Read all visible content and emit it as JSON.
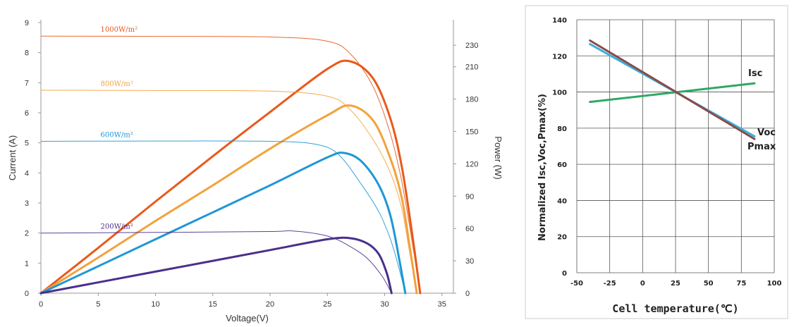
{
  "chart_data": [
    {
      "type": "line",
      "xlabel": "Voltage(V)",
      "ylabel": "Current (A)",
      "y2label": "Power (W)",
      "xlim": [
        0,
        36
      ],
      "ylim": [
        0,
        9
      ],
      "y2lim": [
        0,
        251
      ],
      "xticks": [
        0,
        5,
        10,
        15,
        20,
        25,
        30,
        35
      ],
      "yticks": [
        0,
        1,
        2,
        3,
        4,
        5,
        6,
        7,
        8,
        9
      ],
      "y2ticks": [
        0,
        30,
        60,
        90,
        120,
        150,
        180,
        210,
        230
      ],
      "grid": false,
      "series": [
        {
          "name": "1000W/m²",
          "color": "#e8591c",
          "voc": 33.1,
          "isc": 8.55,
          "current": [
            [
              0,
              8.55
            ],
            [
              10,
              8.54
            ],
            [
              20,
              8.52
            ],
            [
              25,
              8.38
            ],
            [
              27,
              7.96
            ],
            [
              29,
              6.86
            ],
            [
              30.5,
              5.3
            ],
            [
              31.5,
              3.7
            ],
            [
              32.4,
              1.7
            ],
            [
              33.1,
              0
            ]
          ],
          "power": [
            [
              0,
              0
            ],
            [
              5,
              42
            ],
            [
              10,
              85
            ],
            [
              15,
              127
            ],
            [
              20,
              168
            ],
            [
              25,
              208
            ],
            [
              27,
              215
            ],
            [
              29,
              199
            ],
            [
              30.5,
              162
            ],
            [
              31.5,
              117
            ],
            [
              32.4,
              55
            ],
            [
              33.1,
              0
            ]
          ]
        },
        {
          "name": "800W/m²",
          "color": "#f2a23c",
          "voc": 32.8,
          "isc": 6.75,
          "current": [
            [
              0,
              6.75
            ],
            [
              10,
              6.74
            ],
            [
              20,
              6.72
            ],
            [
              25,
              6.55
            ],
            [
              27,
              6.1
            ],
            [
              29,
              5.1
            ],
            [
              30.5,
              4.0
            ],
            [
              31.5,
              2.8
            ],
            [
              32.2,
              1.3
            ],
            [
              32.8,
              0
            ]
          ],
          "power": [
            [
              0,
              0
            ],
            [
              5,
              33
            ],
            [
              10,
              67
            ],
            [
              15,
              100
            ],
            [
              20,
              134
            ],
            [
              25,
              165
            ],
            [
              27,
              174
            ],
            [
              29,
              160
            ],
            [
              30.5,
              125
            ],
            [
              31.5,
              88
            ],
            [
              32.2,
              42
            ],
            [
              32.8,
              0
            ]
          ]
        },
        {
          "name": "600W/m²",
          "color": "#1f97d4",
          "voc": 31.8,
          "isc": 5.05,
          "current": [
            [
              0,
              5.05
            ],
            [
              10,
              5.06
            ],
            [
              20,
              5.05
            ],
            [
              24,
              4.95
            ],
            [
              26,
              4.6
            ],
            [
              28,
              3.6
            ],
            [
              29.5,
              2.7
            ],
            [
              30.5,
              1.8
            ],
            [
              31.2,
              0.9
            ],
            [
              31.8,
              0
            ]
          ],
          "power": [
            [
              0,
              0
            ],
            [
              5,
              25
            ],
            [
              10,
              50
            ],
            [
              15,
              75
            ],
            [
              20,
              100
            ],
            [
              25,
              126
            ],
            [
              26.5,
              130
            ],
            [
              28,
              122
            ],
            [
              29.5,
              100
            ],
            [
              30.5,
              72
            ],
            [
              31.3,
              30
            ],
            [
              31.8,
              0
            ]
          ]
        },
        {
          "name": "200W/m²",
          "color": "#4a2f8c",
          "voc": 30.6,
          "isc": 2.0,
          "current": [
            [
              0,
              2.0
            ],
            [
              10,
              2.02
            ],
            [
              20,
              2.05
            ],
            [
              22,
              2.07
            ],
            [
              25,
              1.9
            ],
            [
              27,
              1.55
            ],
            [
              28.5,
              1.15
            ],
            [
              29.8,
              0.55
            ],
            [
              30.6,
              0
            ]
          ],
          "power": [
            [
              0,
              0
            ],
            [
              5,
              10
            ],
            [
              10,
              20
            ],
            [
              15,
              30
            ],
            [
              20,
              40
            ],
            [
              25,
              50
            ],
            [
              27,
              51
            ],
            [
              28.5,
              46
            ],
            [
              29.5,
              36
            ],
            [
              30.2,
              18
            ],
            [
              30.6,
              0
            ]
          ]
        }
      ]
    },
    {
      "type": "line",
      "xlabel": "Cell temperature(℃)",
      "ylabel": "Normalized Isc,Voc,Pmax(%)",
      "xlim": [
        -50,
        100
      ],
      "ylim": [
        0,
        140
      ],
      "xticks": [
        -50,
        -25,
        0,
        25,
        50,
        75,
        100
      ],
      "yticks": [
        0,
        20,
        40,
        60,
        80,
        100,
        120,
        140
      ],
      "grid": true,
      "series": [
        {
          "name": "Isc",
          "color": "#2fa866",
          "x": [
            -40,
            85
          ],
          "values": [
            94.5,
            104.8
          ]
        },
        {
          "name": "Voc",
          "color": "#3ab0d8",
          "x": [
            -40,
            85
          ],
          "values": [
            126.5,
            75.5
          ]
        },
        {
          "name": "Pmax",
          "color": "#8a4a4a",
          "x": [
            -40,
            85
          ],
          "values": [
            128.5,
            74
          ]
        }
      ]
    }
  ]
}
